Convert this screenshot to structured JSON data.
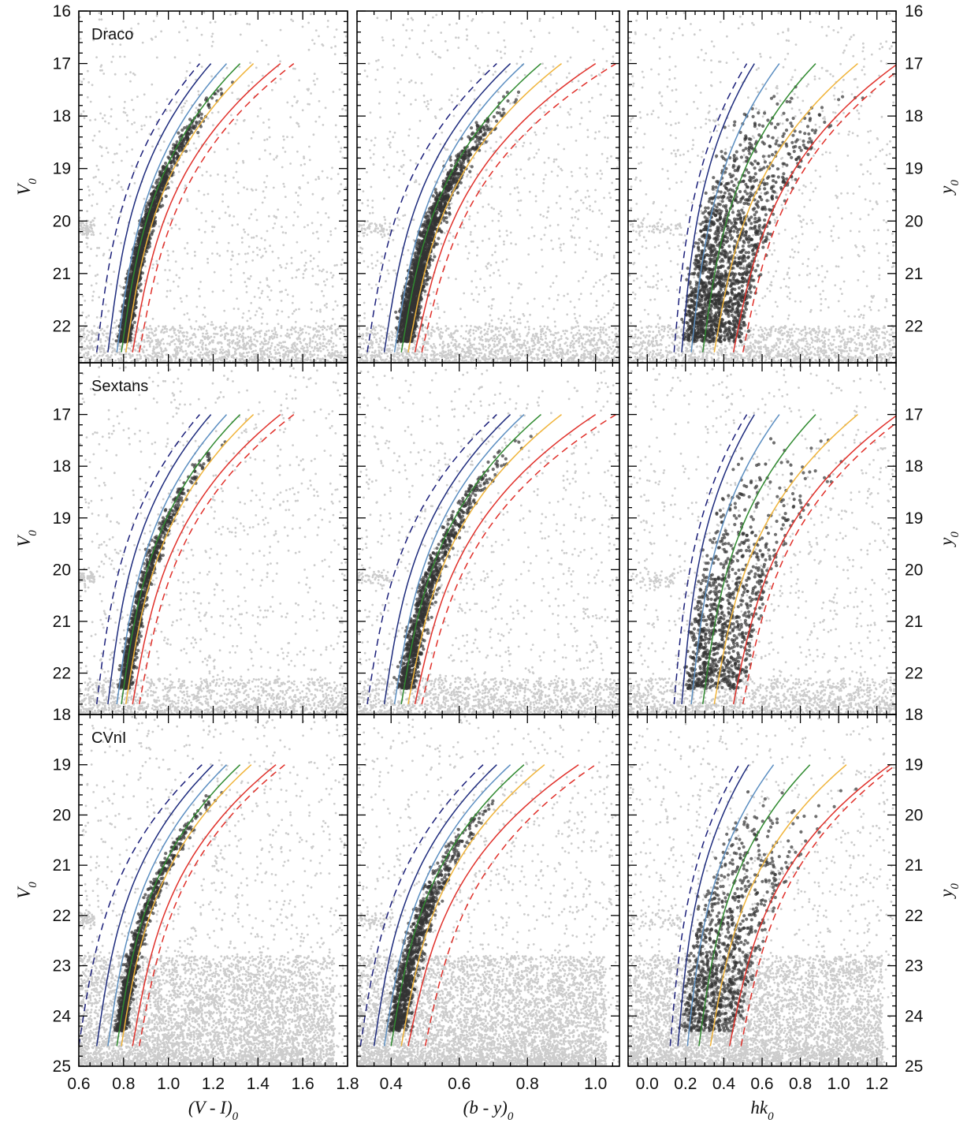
{
  "chart_data": {
    "type": "scatter",
    "colors": {
      "field": "#cccccc",
      "members": "#333333",
      "iso_dashed_blue": "#1b1f7a",
      "iso_navy": "#1d2b7d",
      "iso_lightblue": "#5b8ec1",
      "iso_green": "#2f8a2f",
      "iso_orange": "#f0b43a",
      "iso_red": "#e0302a",
      "iso_dashed_red": "#e0302a"
    },
    "isochrone_styles": [
      "dashed-blue",
      "navy",
      "light-blue",
      "green",
      "orange",
      "red",
      "dashed-red"
    ],
    "columns": [
      {
        "xlabel": "(V - I)0",
        "xticks": [
          "0.6",
          "0.8",
          "1.0",
          "1.2",
          "1.4",
          "1.6",
          "1.8"
        ],
        "xlim": [
          0.6,
          1.8
        ]
      },
      {
        "xlabel": "(b - y)0",
        "xticks": [
          "0.4",
          "0.6",
          "0.8",
          "1.0"
        ],
        "xlim": [
          0.3,
          1.07
        ]
      },
      {
        "xlabel": "hk0",
        "xticks": [
          "0.0",
          "0.2",
          "0.4",
          "0.6",
          "0.8",
          "1.0",
          "1.2"
        ],
        "xlim": [
          -0.1,
          1.3
        ]
      }
    ],
    "rows": [
      {
        "galaxy": "Draco",
        "left_ylabel": "V0",
        "right_ylabel": "y0",
        "ylim": [
          22.7,
          16
        ],
        "yticks": [
          "16",
          "17",
          "18",
          "19",
          "20",
          "21",
          "22"
        ],
        "iso_top": 17,
        "iso_bottom": 22.5,
        "members_bright": 17.3,
        "members_faint": 22.3,
        "isochrones": [
          {
            "panel": 0,
            "x_top": [
              1.14,
              1.19,
              1.26,
              1.32,
              1.38,
              1.5,
              1.56
            ],
            "x_bottom": [
              0.68,
              0.73,
              0.77,
              0.79,
              0.81,
              0.84,
              0.87
            ]
          },
          {
            "panel": 1,
            "x_top": [
              0.71,
              0.75,
              0.79,
              0.84,
              0.9,
              1.0,
              1.06
            ],
            "x_bottom": [
              0.33,
              0.38,
              0.41,
              0.43,
              0.45,
              0.47,
              0.49
            ]
          },
          {
            "panel": 2,
            "x_top": [
              0.52,
              0.56,
              0.69,
              0.88,
              1.1,
              1.31,
              1.36
            ],
            "x_bottom": [
              0.14,
              0.18,
              0.23,
              0.29,
              0.35,
              0.45,
              0.5
            ]
          }
        ]
      },
      {
        "galaxy": "Sextans",
        "left_ylabel": "V0",
        "right_ylabel": "y0",
        "ylim": [
          22.8,
          16
        ],
        "yticks": [
          "17",
          "18",
          "19",
          "20",
          "21",
          "22"
        ],
        "iso_top": 17,
        "iso_bottom": 22.6,
        "members_bright": 17.3,
        "members_faint": 22.3,
        "isochrones": [
          {
            "panel": 0,
            "x_top": [
              1.14,
              1.19,
              1.26,
              1.32,
              1.38,
              1.5,
              1.56
            ],
            "x_bottom": [
              0.68,
              0.73,
              0.77,
              0.79,
              0.81,
              0.84,
              0.87
            ]
          },
          {
            "panel": 1,
            "x_top": [
              0.71,
              0.75,
              0.79,
              0.84,
              0.9,
              1.0,
              1.06
            ],
            "x_bottom": [
              0.33,
              0.38,
              0.41,
              0.43,
              0.45,
              0.47,
              0.49
            ]
          },
          {
            "panel": 2,
            "x_top": [
              0.52,
              0.56,
              0.69,
              0.88,
              1.1,
              1.31,
              1.36
            ],
            "x_bottom": [
              0.14,
              0.18,
              0.23,
              0.29,
              0.35,
              0.45,
              0.5
            ]
          }
        ]
      },
      {
        "galaxy": "CVnI",
        "left_ylabel": "V0",
        "right_ylabel": "y0",
        "ylim": [
          25,
          18
        ],
        "yticks": [
          "18",
          "19",
          "20",
          "21",
          "22",
          "23",
          "24",
          "25"
        ],
        "iso_top": 19,
        "iso_bottom": 24.6,
        "members_bright": 19.3,
        "members_faint": 24.3,
        "isochrones": [
          {
            "panel": 0,
            "x_top": [
              1.15,
              1.2,
              1.26,
              1.32,
              1.37,
              1.48,
              1.52
            ],
            "x_bottom": [
              0.6,
              0.68,
              0.73,
              0.77,
              0.79,
              0.84,
              0.87
            ]
          },
          {
            "panel": 1,
            "x_top": [
              0.67,
              0.71,
              0.75,
              0.79,
              0.85,
              0.95,
              1.0
            ],
            "x_bottom": [
              0.31,
              0.35,
              0.38,
              0.4,
              0.43,
              0.45,
              0.5
            ]
          },
          {
            "panel": 2,
            "x_top": [
              0.48,
              0.53,
              0.66,
              0.85,
              1.04,
              1.27,
              1.3
            ],
            "x_bottom": [
              0.12,
              0.16,
              0.21,
              0.27,
              0.33,
              0.43,
              0.49
            ]
          }
        ]
      }
    ]
  }
}
